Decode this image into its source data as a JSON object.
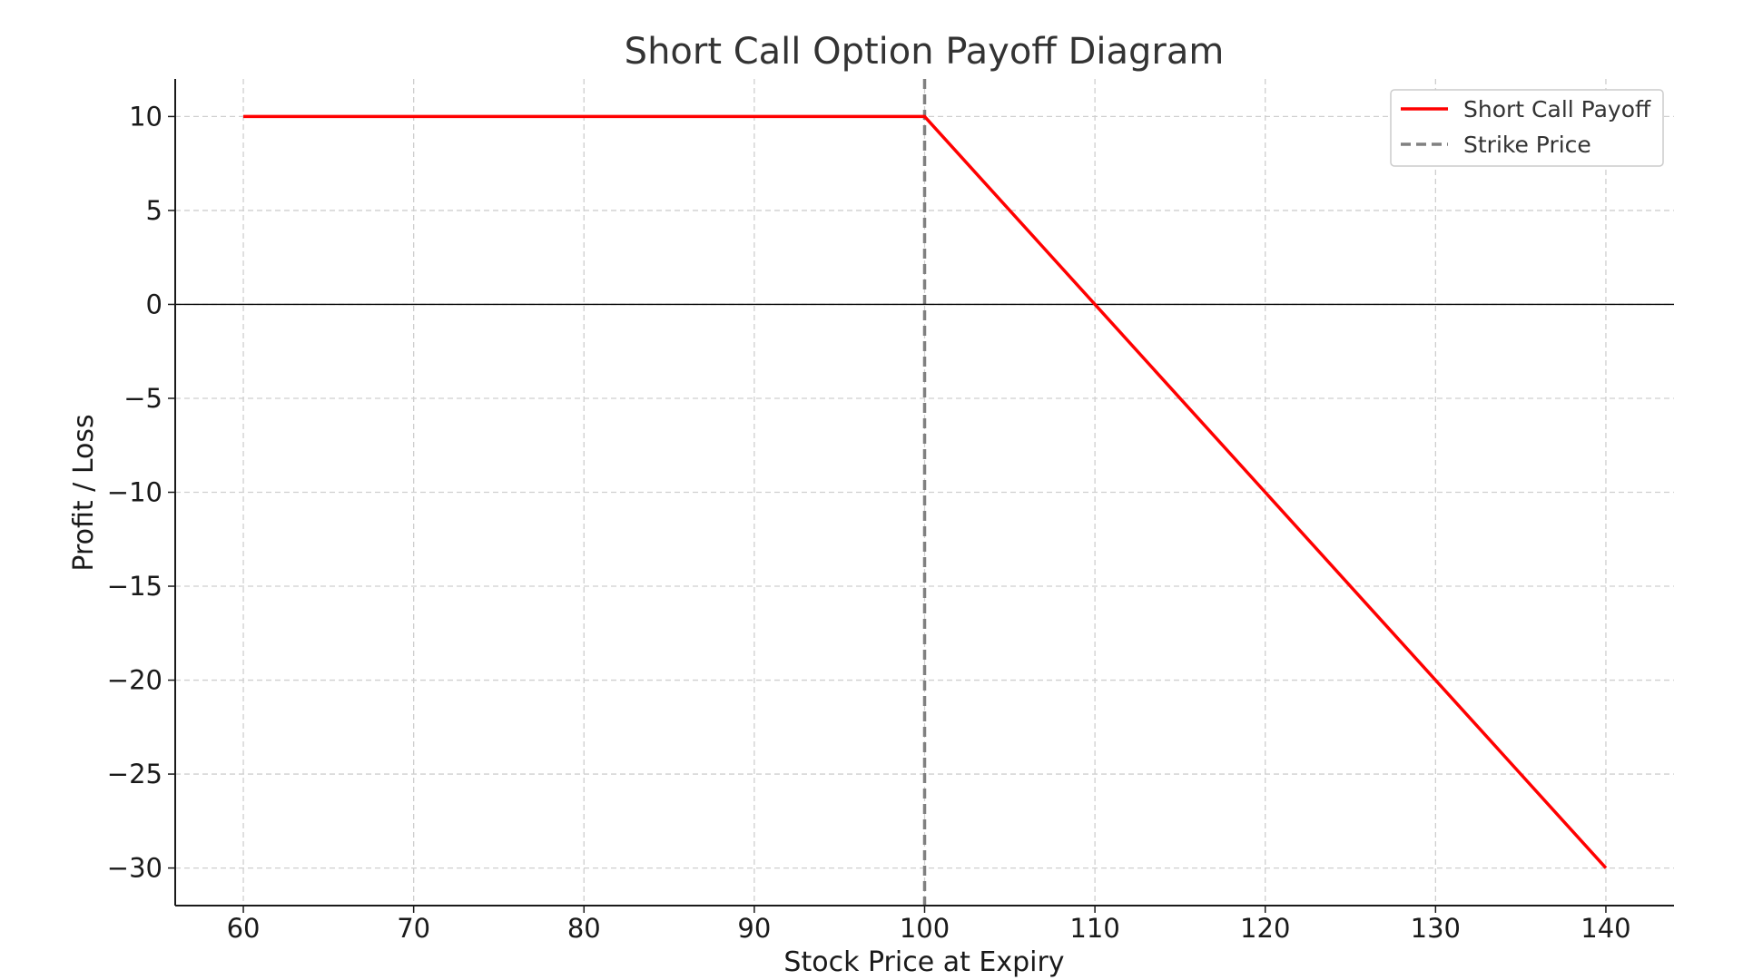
{
  "chart_data": {
    "type": "line",
    "title": "Short Call Option Payoff Diagram",
    "xlabel": "Stock Price at Expiry",
    "ylabel": "Profit / Loss",
    "xlim": [
      56,
      144
    ],
    "ylim": [
      -32,
      12
    ],
    "xticks": [
      60,
      70,
      80,
      90,
      100,
      110,
      120,
      130,
      140
    ],
    "yticks": [
      10,
      5,
      0,
      -5,
      -10,
      -15,
      -20,
      -25,
      -30
    ],
    "ytick_labels": [
      "10",
      "5",
      "0",
      "−5",
      "−10",
      "−15",
      "−20",
      "−25",
      "−30"
    ],
    "grid": true,
    "legend_position": "top-right",
    "series": [
      {
        "name": "Short Call Payoff",
        "color": "#ff0000",
        "style": "solid",
        "x": [
          60,
          100,
          110,
          120,
          130,
          140
        ],
        "y": [
          10,
          10,
          0,
          -10,
          -20,
          -30
        ]
      }
    ],
    "reference_lines": [
      {
        "name": "Strike Price",
        "orientation": "vertical",
        "x": 100,
        "color": "#808080",
        "style": "dashed"
      },
      {
        "orientation": "horizontal",
        "y": 0,
        "color": "#000000",
        "style": "solid"
      }
    ]
  }
}
